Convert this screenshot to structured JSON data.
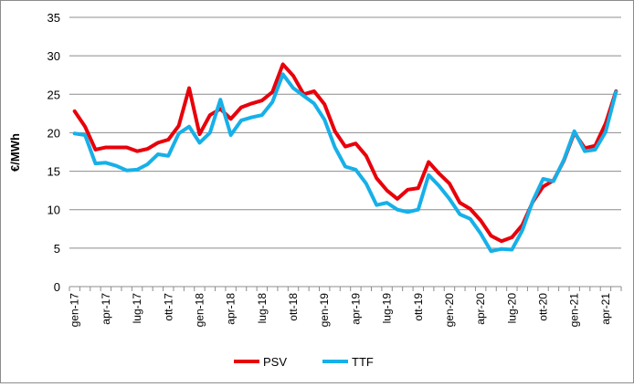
{
  "chart_data": {
    "type": "line",
    "ylabel": "€/MWh",
    "xlabel": "",
    "ylim": [
      0,
      35
    ],
    "yticks": [
      0,
      5,
      10,
      15,
      20,
      25,
      30,
      35
    ],
    "grid": "horizontal",
    "legend_position": "bottom",
    "x": [
      "gen-17",
      "feb-17",
      "mar-17",
      "apr-17",
      "mag-17",
      "giu-17",
      "lug-17",
      "ago-17",
      "set-17",
      "ott-17",
      "nov-17",
      "dic-17",
      "gen-18",
      "feb-18",
      "mar-18",
      "apr-18",
      "mag-18",
      "giu-18",
      "lug-18",
      "ago-18",
      "set-18",
      "ott-18",
      "nov-18",
      "dic-18",
      "gen-19",
      "feb-19",
      "mar-19",
      "apr-19",
      "mag-19",
      "giu-19",
      "lug-19",
      "ago-19",
      "set-19",
      "ott-19",
      "nov-19",
      "dic-19",
      "gen-20",
      "feb-20",
      "mar-20",
      "apr-20",
      "mag-20",
      "giu-20",
      "lug-20",
      "ago-20",
      "set-20",
      "ott-20",
      "nov-20",
      "dic-20",
      "gen-21",
      "feb-21",
      "mar-21",
      "apr-21",
      "mag-21"
    ],
    "xtick_labels": [
      "gen-17",
      "apr-17",
      "lug-17",
      "ott-17",
      "gen-18",
      "apr-18",
      "lug-18",
      "ott-18",
      "gen-19",
      "apr-19",
      "lug-19",
      "ott-19",
      "gen-20",
      "apr-20",
      "lug-20",
      "ott-20",
      "gen-21",
      "apr-21"
    ],
    "series": [
      {
        "name": "PSV",
        "color": "#e8000b",
        "values": [
          22.8,
          20.8,
          17.8,
          18.1,
          18.1,
          18.1,
          17.6,
          17.9,
          18.7,
          19.1,
          20.9,
          25.8,
          19.8,
          22.3,
          23.1,
          21.8,
          23.3,
          23.8,
          24.2,
          25.3,
          28.9,
          27.4,
          25.0,
          25.4,
          23.7,
          20.2,
          18.2,
          18.6,
          17.0,
          14.1,
          12.5,
          11.4,
          12.6,
          12.8,
          16.2,
          14.7,
          13.4,
          10.9,
          10.1,
          8.6,
          6.6,
          5.9,
          6.4,
          8.0,
          11.0,
          13.0,
          13.8,
          16.4,
          20.0,
          18.0,
          18.3,
          21.2,
          25.4
        ]
      },
      {
        "name": "TTF",
        "color": "#17b0e8",
        "values": [
          19.9,
          19.7,
          16.0,
          16.1,
          15.7,
          15.1,
          15.2,
          15.9,
          17.2,
          17.0,
          19.9,
          20.8,
          18.7,
          20.0,
          24.3,
          19.7,
          21.6,
          22.0,
          22.3,
          24.0,
          27.6,
          25.8,
          24.8,
          23.8,
          21.7,
          18.1,
          15.6,
          15.2,
          13.4,
          10.6,
          10.9,
          10.0,
          9.7,
          10.0,
          14.5,
          13.1,
          11.4,
          9.4,
          8.8,
          6.9,
          4.6,
          4.9,
          4.8,
          7.3,
          11.1,
          14.0,
          13.7,
          16.5,
          20.2,
          17.6,
          17.8,
          20.1,
          25.3
        ]
      }
    ]
  }
}
